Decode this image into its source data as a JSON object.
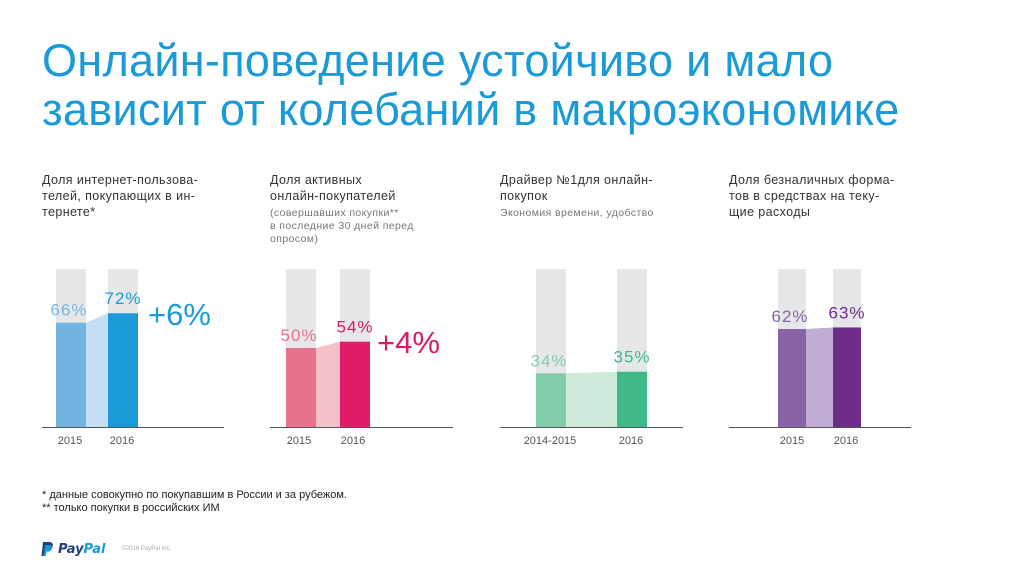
{
  "title": {
    "line1": "Онлайн-поведение устойчиво и мало",
    "line2": "зависит от колебаний в макроэкономике"
  },
  "colors": {
    "title": "#1a9bd7",
    "track": "#e6e7e9",
    "axis": "#555555",
    "tick_text": "#555555"
  },
  "chart_data": [
    {
      "type": "bar",
      "label_lines": [
        "Доля интернет-пользова-",
        "телей, покупающих в ин-",
        "тернете*"
      ],
      "sublabel_lines": [],
      "categories": [
        "2015",
        "2016"
      ],
      "values": [
        66,
        72
      ],
      "value_labels": [
        "66%",
        "72%"
      ],
      "ylim": [
        0,
        100
      ],
      "delta": "+6%",
      "colors": {
        "bar1": "#72b3e0",
        "bar2": "#1a9bd7",
        "connector": "#c4dff3",
        "label1": "#7ab6e2",
        "label2": "#1a9bd7",
        "delta": "#1a9bd7"
      }
    },
    {
      "type": "bar",
      "label_lines": [
        "Доля активных",
        "онлайн-покупателей"
      ],
      "sublabel_lines": [
        "(совершавших покупки**",
        "в последние 30 дней перед",
        "опросом)"
      ],
      "categories": [
        "2015",
        "2016"
      ],
      "values": [
        50,
        54
      ],
      "value_labels": [
        "50%",
        "54%"
      ],
      "ylim": [
        0,
        100
      ],
      "delta": "+4%",
      "colors": {
        "bar1": "#e8718b",
        "bar2": "#e01c67",
        "connector": "#f4c1cb",
        "label1": "#e8718b",
        "label2": "#d81c63",
        "delta": "#d81c63"
      }
    },
    {
      "type": "bar",
      "label_lines": [
        "Драйвер №1для онлайн-",
        "покупок"
      ],
      "sublabel_lines": [
        "Экономия времени, удобство"
      ],
      "categories": [
        "2014-2015",
        "2016"
      ],
      "values": [
        34,
        35
      ],
      "value_labels": [
        "34%",
        "35%"
      ],
      "ylim": [
        0,
        100
      ],
      "delta": "",
      "colors": {
        "bar1": "#84cdab",
        "bar2": "#3fb985",
        "connector": "#cdeadb",
        "label1": "#84cdab",
        "label2": "#3fb985",
        "delta": "#3fb985"
      }
    },
    {
      "type": "bar",
      "label_lines": [
        "Доля безналичных форма-",
        "тов в средствах на теку-",
        "щие расходы"
      ],
      "sublabel_lines": [],
      "categories": [
        "2015",
        "2016"
      ],
      "values": [
        62,
        63
      ],
      "value_labels": [
        "62%",
        "63%"
      ],
      "ylim": [
        0,
        100
      ],
      "delta": "",
      "colors": {
        "bar1": "#8864a6",
        "bar2": "#6d2c87",
        "connector": "#c0aed3",
        "label1": "#8864a6",
        "label2": "#6d2c87",
        "delta": "#6d2c87"
      }
    }
  ],
  "footnotes": {
    "line1": "* данные совокупно по покупавшим в России и за рубежом.",
    "line2": "** только покупки в российских ИМ"
  },
  "logo": {
    "word_pay": "Pay",
    "word_pal": "Pal",
    "copyright": "©2016 PayPal Inc."
  }
}
